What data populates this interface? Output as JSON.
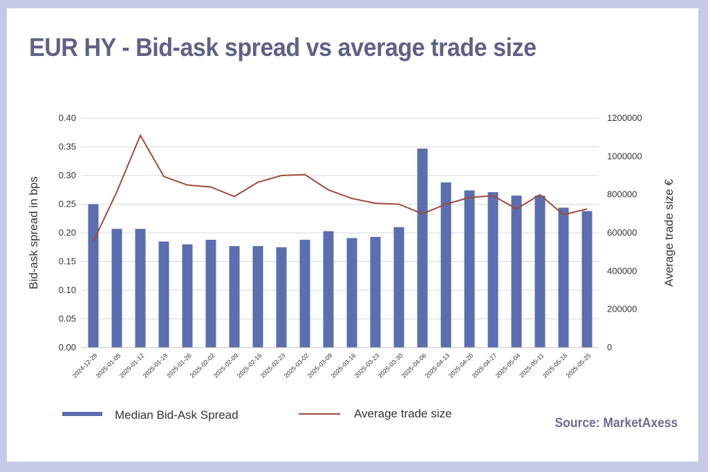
{
  "title": "EUR HY - Bid-ask spread vs average trade size",
  "source": "Source: MarketAxess",
  "colors": {
    "bar": "#5b6eaf",
    "line": "#a0483c",
    "title": "#5f6185",
    "background": "#c5cbe6"
  },
  "chart_data": {
    "type": "bar",
    "categories": [
      "2024-12-29",
      "2025-01-05",
      "2025-01-12",
      "2025-01-19",
      "2025-01-26",
      "2025-02-02",
      "2025-02-09",
      "2025-02-16",
      "2025-02-23",
      "2025-03-02",
      "2025-03-09",
      "2025-03-16",
      "2025-03-23",
      "2025-03-30",
      "2025-04-06",
      "2025-04-13",
      "2025-04-20",
      "2025-04-27",
      "2025-05-04",
      "2025-05-11",
      "2025-05-18",
      "2025-05-25"
    ],
    "series": [
      {
        "name": "Median Bid-Ask Spread",
        "type": "bar",
        "axis": "left",
        "values": [
          0.25,
          0.207,
          0.207,
          0.185,
          0.18,
          0.188,
          0.177,
          0.177,
          0.175,
          0.188,
          0.203,
          0.191,
          0.193,
          0.21,
          0.347,
          0.288,
          0.274,
          0.271,
          0.265,
          0.265,
          0.244,
          0.238
        ]
      },
      {
        "name": "Average trade size",
        "type": "line",
        "axis": "right",
        "values": [
          555000,
          815000,
          1110000,
          895000,
          850000,
          840000,
          790000,
          865000,
          900000,
          905000,
          825000,
          780000,
          755000,
          750000,
          700000,
          750000,
          785000,
          795000,
          725000,
          800000,
          695000,
          725000
        ]
      }
    ],
    "ylabel": "Bid-ask spread in bps",
    "y2label": "Average trade size €",
    "ylim": [
      0,
      0.4
    ],
    "y2lim": [
      0,
      1200000
    ],
    "yticks": [
      "0.00",
      "0.05",
      "0.10",
      "0.15",
      "0.20",
      "0.25",
      "0.30",
      "0.35",
      "0.40"
    ],
    "y2ticks": [
      "0",
      "200000",
      "400000",
      "600000",
      "800000",
      "1000000",
      "1200000"
    ],
    "grid": true,
    "legend": "bottom"
  }
}
